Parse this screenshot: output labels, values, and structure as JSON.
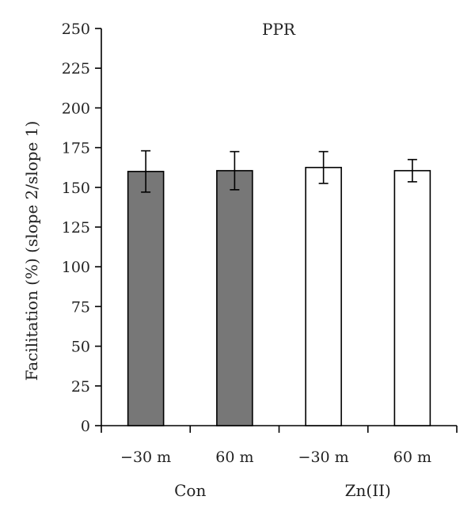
{
  "chart_data": {
    "type": "bar",
    "title": "PPR",
    "ylabel": "Facilitation (%) (slope 2/slope 1)",
    "xlabel": "",
    "ylim": [
      0,
      250
    ],
    "yticks": [
      0,
      25,
      50,
      75,
      100,
      125,
      150,
      175,
      200,
      225,
      250
    ],
    "grid": false,
    "categories": [
      "−30 m",
      "60 m",
      "−30 m",
      "60 m"
    ],
    "groups": [
      {
        "label": "Con",
        "categories": [
          0,
          1
        ]
      },
      {
        "label": "Zn(II)",
        "categories": [
          2,
          3
        ]
      }
    ],
    "values": [
      160,
      160.5,
      162.5,
      160.5
    ],
    "errors": [
      13,
      12,
      10,
      7
    ],
    "colors": [
      "#777777",
      "#777777",
      "#ffffff",
      "#ffffff"
    ]
  }
}
